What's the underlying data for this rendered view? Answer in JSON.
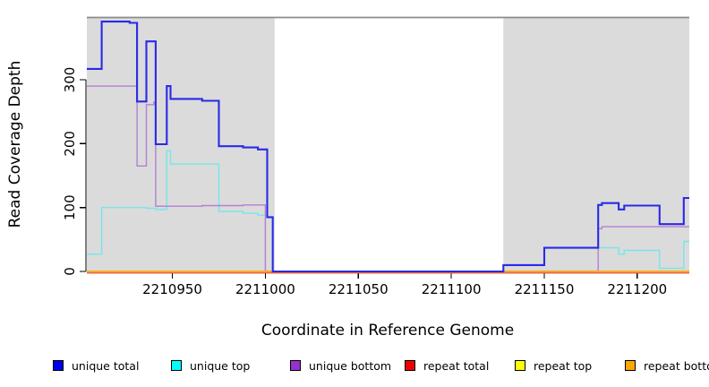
{
  "chart_data": {
    "type": "line",
    "title": "",
    "xlabel": "Coordinate in Reference Genome",
    "ylabel": "Read Coverage Depth",
    "xlim": [
      2210904,
      2211228
    ],
    "ylim": [
      0,
      397
    ],
    "x_ticks": [
      2210950,
      2211000,
      2211050,
      2211100,
      2211150,
      2211200
    ],
    "y_ticks": [
      0,
      100,
      200,
      300
    ],
    "grid": "off",
    "legend_position": "bottom",
    "panel_color": "#DBDBDB",
    "top_border_color": "#8C8C8C",
    "shaded_regions": [
      {
        "x0": 2210904,
        "x1": 2211005
      },
      {
        "x0": 2211128,
        "x1": 2211228
      }
    ],
    "draw_order": [
      "repeat total",
      "repeat top",
      "unique top",
      "unique bottom",
      "repeat bottom",
      "unique total"
    ],
    "series": [
      {
        "name": "unique total",
        "color": "#2A2AE6",
        "points": [
          [
            2210904,
            317
          ],
          [
            2210912,
            391
          ],
          [
            2210927,
            389
          ],
          [
            2210931,
            266
          ],
          [
            2210936,
            360
          ],
          [
            2210941,
            199
          ],
          [
            2210947,
            290
          ],
          [
            2210949,
            270
          ],
          [
            2210966,
            267
          ],
          [
            2210975,
            196
          ],
          [
            2210988,
            194
          ],
          [
            2210996,
            191
          ],
          [
            2211001,
            85
          ],
          [
            2211004,
            0
          ],
          [
            2211128,
            10
          ],
          [
            2211150,
            37
          ],
          [
            2211179,
            104
          ],
          [
            2211181,
            107
          ],
          [
            2211190,
            97
          ],
          [
            2211193,
            103
          ],
          [
            2211212,
            74
          ],
          [
            2211225,
            115
          ]
        ]
      },
      {
        "name": "unique top",
        "color": "#74E7E9",
        "points": [
          [
            2210904,
            27
          ],
          [
            2210912,
            100
          ],
          [
            2210936,
            99
          ],
          [
            2210941,
            97
          ],
          [
            2210947,
            189
          ],
          [
            2210949,
            168
          ],
          [
            2210975,
            94
          ],
          [
            2210988,
            91
          ],
          [
            2210996,
            88
          ],
          [
            2211001,
            85
          ],
          [
            2211004,
            0
          ],
          [
            2211128,
            10
          ],
          [
            2211150,
            37
          ],
          [
            2211190,
            27
          ],
          [
            2211193,
            33
          ],
          [
            2211212,
            5
          ],
          [
            2211225,
            47
          ]
        ]
      },
      {
        "name": "unique bottom",
        "color": "#B57FD2",
        "points": [
          [
            2210904,
            290
          ],
          [
            2210931,
            165
          ],
          [
            2210936,
            261
          ],
          [
            2210940,
            265
          ],
          [
            2210941,
            102
          ],
          [
            2210966,
            103
          ],
          [
            2210988,
            104
          ],
          [
            2211000,
            0
          ],
          [
            2211179,
            67
          ],
          [
            2211181,
            70
          ]
        ]
      },
      {
        "name": "repeat total",
        "color": "#E23B3B",
        "points": [
          [
            2210904,
            0
          ]
        ]
      },
      {
        "name": "repeat top",
        "color": "#F2EE1F",
        "points": [
          [
            2210904,
            0
          ]
        ]
      },
      {
        "name": "repeat bottom",
        "color": "#FFA217",
        "points": [
          [
            2210904,
            0
          ]
        ]
      }
    ],
    "legend": [
      {
        "label": "unique total",
        "color": "#0000EE"
      },
      {
        "label": "unique top",
        "color": "#00FFFF"
      },
      {
        "label": "unique bottom",
        "color": "#9932CC"
      },
      {
        "label": "repeat total",
        "color": "#EE0000"
      },
      {
        "label": "repeat top",
        "color": "#FFFF00"
      },
      {
        "label": "repeat bottom",
        "color": "#FFA500"
      }
    ]
  }
}
